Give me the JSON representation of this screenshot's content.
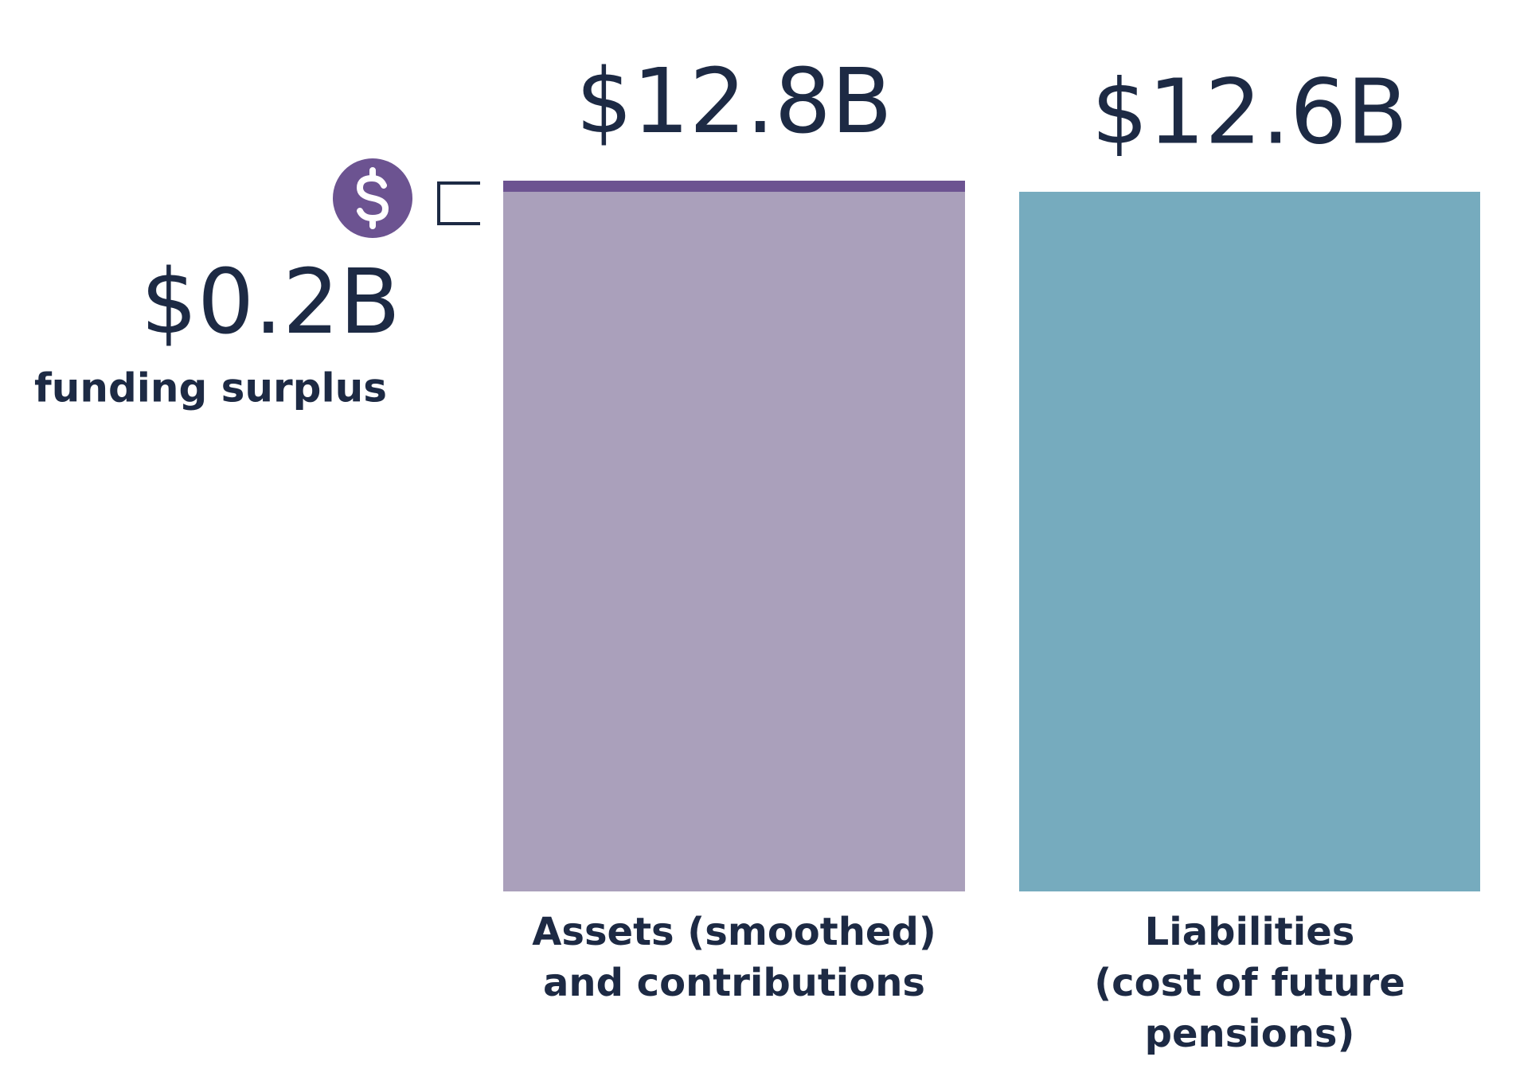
{
  "chart_data": {
    "type": "bar",
    "categories": [
      [
        "Assets (smoothed)",
        "and contributions"
      ],
      [
        "Liabilities",
        "(cost of future",
        "pensions)"
      ]
    ],
    "values": [
      12.8,
      12.6
    ],
    "value_labels": [
      "$12.8B",
      "$12.6B"
    ],
    "colors": [
      "#aaa0bb",
      "#76abbe"
    ],
    "surplus": {
      "value": 0.2,
      "label": "$0.2B",
      "caption": "funding surplus",
      "color": "#6c5391"
    },
    "ylim": [
      0,
      12.8
    ]
  }
}
